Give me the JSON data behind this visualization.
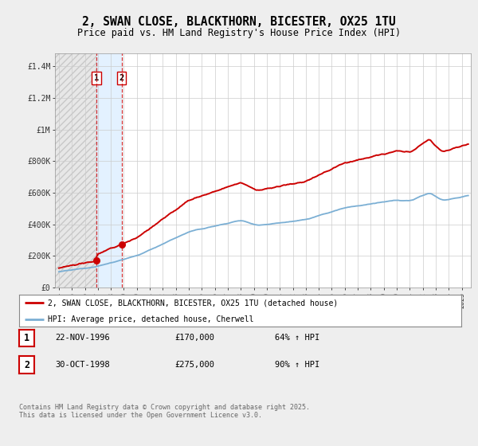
{
  "title": "2, SWAN CLOSE, BLACKTHORN, BICESTER, OX25 1TU",
  "subtitle": "Price paid vs. HM Land Registry's House Price Index (HPI)",
  "title_fontsize": 10.5,
  "subtitle_fontsize": 8.5,
  "ylabel_ticks": [
    "£0",
    "£200K",
    "£400K",
    "£600K",
    "£800K",
    "£1M",
    "£1.2M",
    "£1.4M"
  ],
  "ytick_values": [
    0,
    200000,
    400000,
    600000,
    800000,
    1000000,
    1200000,
    1400000
  ],
  "ylim": [
    0,
    1480000
  ],
  "xlim_start": 1993.7,
  "xlim_end": 2025.7,
  "bg_color": "#eeeeee",
  "plot_bg_color": "#ffffff",
  "red_color": "#cc0000",
  "blue_color": "#7bafd4",
  "blue_span_color": "#ddeeff",
  "hatch_color": "#cccccc",
  "transaction1_x": 1996.9,
  "transaction1_y": 170000,
  "transaction2_x": 1998.83,
  "transaction2_y": 275000,
  "legend_label_red": "2, SWAN CLOSE, BLACKTHORN, BICESTER, OX25 1TU (detached house)",
  "legend_label_blue": "HPI: Average price, detached house, Cherwell",
  "table_row1": [
    "1",
    "22-NOV-1996",
    "£170,000",
    "64% ↑ HPI"
  ],
  "table_row2": [
    "2",
    "30-OCT-1998",
    "£275,000",
    "90% ↑ HPI"
  ],
  "footnote": "Contains HM Land Registry data © Crown copyright and database right 2025.\nThis data is licensed under the Open Government Licence v3.0.",
  "hatch_x_start": 1993.7,
  "hatch_x_end": 1996.9
}
